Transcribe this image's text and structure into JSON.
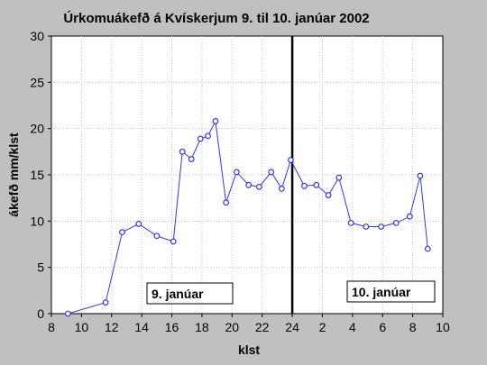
{
  "chart_data": {
    "type": "line",
    "title": "Úrkomuákefð á Kvískerjum 9. til 10. janúar 2002",
    "xlabel": "klst",
    "ylabel": "ákefð mm/klst",
    "xlim": [
      8,
      34
    ],
    "ylim": [
      0,
      30
    ],
    "x_tick_labels": [
      "8",
      "10",
      "12",
      "14",
      "16",
      "18",
      "20",
      "22",
      "24",
      "2",
      "4",
      "6",
      "8",
      "10"
    ],
    "y_tick_labels": [
      "0",
      "5",
      "10",
      "15",
      "20",
      "25",
      "30"
    ],
    "grid": true,
    "annotations": [
      "9. janúar",
      "10. janúar"
    ],
    "divider_x": 24,
    "colors": {
      "series": "#3333ff",
      "background": "#c0c0c0",
      "plot": "#ffffff",
      "divider": "#000000"
    },
    "series": [
      {
        "x": [
          9.1,
          11.6,
          12.7,
          13.8,
          15.0,
          16.1,
          16.7,
          17.3,
          17.9,
          18.4,
          18.9,
          19.6,
          20.3,
          21.1,
          21.8,
          22.6,
          23.3,
          23.9,
          24.8,
          25.6,
          26.4,
          27.1,
          27.9,
          28.9,
          29.9,
          30.9,
          31.8,
          32.5,
          33.0
        ],
        "y": [
          0,
          1.2,
          8.8,
          9.7,
          8.4,
          7.8,
          17.5,
          16.7,
          18.9,
          19.2,
          20.8,
          12.0,
          15.3,
          13.9,
          13.7,
          15.3,
          13.5,
          16.6,
          13.8,
          13.9,
          12.8,
          14.7,
          9.8,
          9.4,
          9.4,
          9.8,
          10.5,
          14.9,
          7.0
        ]
      }
    ]
  }
}
